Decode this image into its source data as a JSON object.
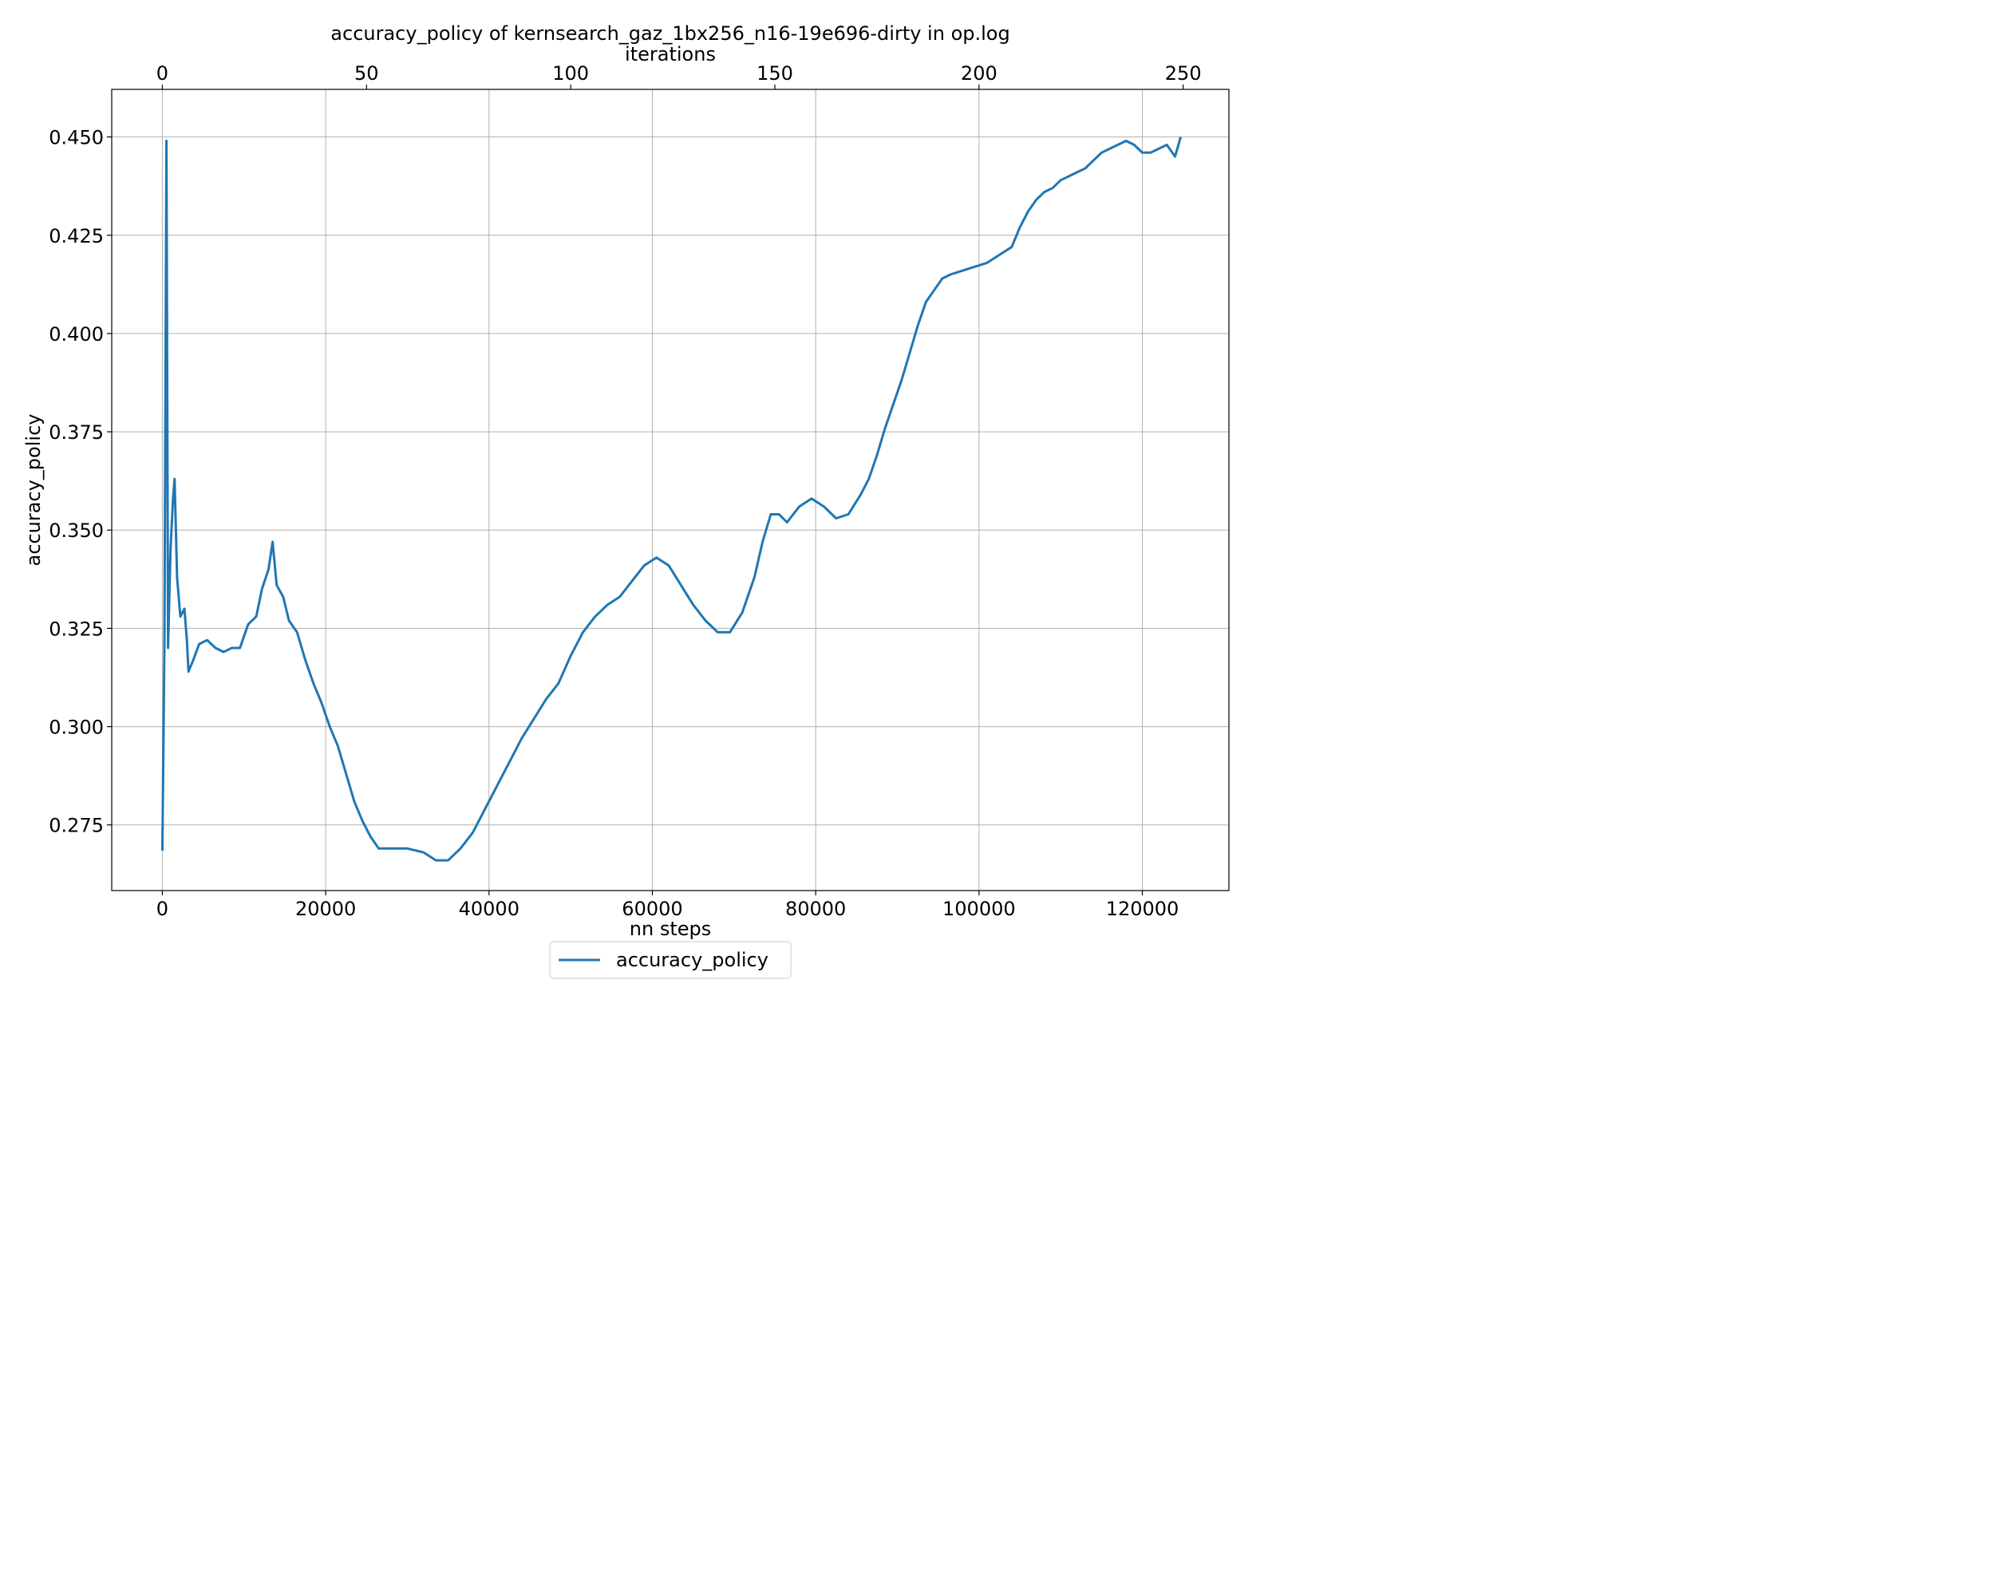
{
  "chart_data": {
    "type": "line",
    "title": "accuracy_policy of kernsearch_gaz_1bx256_n16-19e696-dirty in op.log",
    "xlabel": "nn steps",
    "x2label": "iterations",
    "ylabel": "accuracy_policy",
    "xlim": [
      -6200,
      130600
    ],
    "ylim": [
      0.2583,
      0.4621
    ],
    "x2lim": [
      -12.4,
      261.2
    ],
    "xticks": [
      "0",
      "20000",
      "40000",
      "60000",
      "80000",
      "100000",
      "120000"
    ],
    "x2ticks": [
      "0",
      "50",
      "100",
      "150",
      "200",
      "250"
    ],
    "yticks": [
      "0.275",
      "0.300",
      "0.325",
      "0.350",
      "0.375",
      "0.400",
      "0.425",
      "0.450"
    ],
    "grid": true,
    "legend": "below-center",
    "series": [
      {
        "name": "accuracy_policy",
        "color": "#1f77b4",
        "points": [
          [
            0,
            0.2685
          ],
          [
            250,
            0.32
          ],
          [
            500,
            0.449
          ],
          [
            700,
            0.32
          ],
          [
            1000,
            0.345
          ],
          [
            1300,
            0.358
          ],
          [
            1500,
            0.363
          ],
          [
            1800,
            0.338
          ],
          [
            2200,
            0.328
          ],
          [
            2700,
            0.33
          ],
          [
            3000,
            0.322
          ],
          [
            3200,
            0.314
          ],
          [
            3800,
            0.317
          ],
          [
            4500,
            0.321
          ],
          [
            5500,
            0.322
          ],
          [
            6500,
            0.32
          ],
          [
            7500,
            0.319
          ],
          [
            8500,
            0.32
          ],
          [
            9500,
            0.32
          ],
          [
            10500,
            0.326
          ],
          [
            11500,
            0.328
          ],
          [
            12200,
            0.335
          ],
          [
            13000,
            0.34
          ],
          [
            13500,
            0.347
          ],
          [
            14000,
            0.336
          ],
          [
            14800,
            0.333
          ],
          [
            15500,
            0.327
          ],
          [
            16500,
            0.324
          ],
          [
            17500,
            0.317
          ],
          [
            18500,
            0.311
          ],
          [
            19500,
            0.306
          ],
          [
            20500,
            0.3
          ],
          [
            21500,
            0.295
          ],
          [
            22500,
            0.288
          ],
          [
            23500,
            0.281
          ],
          [
            24500,
            0.276
          ],
          [
            25500,
            0.272
          ],
          [
            26500,
            0.269
          ],
          [
            28000,
            0.269
          ],
          [
            30000,
            0.269
          ],
          [
            32000,
            0.268
          ],
          [
            33500,
            0.266
          ],
          [
            35000,
            0.266
          ],
          [
            36500,
            0.269
          ],
          [
            38000,
            0.273
          ],
          [
            39500,
            0.279
          ],
          [
            41000,
            0.285
          ],
          [
            42500,
            0.291
          ],
          [
            44000,
            0.297
          ],
          [
            45500,
            0.302
          ],
          [
            47000,
            0.307
          ],
          [
            48500,
            0.311
          ],
          [
            50000,
            0.318
          ],
          [
            51500,
            0.324
          ],
          [
            53000,
            0.328
          ],
          [
            54500,
            0.331
          ],
          [
            56000,
            0.333
          ],
          [
            57500,
            0.337
          ],
          [
            59000,
            0.341
          ],
          [
            60500,
            0.343
          ],
          [
            62000,
            0.341
          ],
          [
            63500,
            0.336
          ],
          [
            65000,
            0.331
          ],
          [
            66500,
            0.327
          ],
          [
            68000,
            0.324
          ],
          [
            69500,
            0.324
          ],
          [
            71000,
            0.329
          ],
          [
            72500,
            0.338
          ],
          [
            73500,
            0.347
          ],
          [
            74500,
            0.354
          ],
          [
            75500,
            0.354
          ],
          [
            76500,
            0.352
          ],
          [
            78000,
            0.356
          ],
          [
            79500,
            0.358
          ],
          [
            81000,
            0.356
          ],
          [
            82500,
            0.353
          ],
          [
            84000,
            0.354
          ],
          [
            85500,
            0.359
          ],
          [
            86500,
            0.363
          ],
          [
            87500,
            0.369
          ],
          [
            88500,
            0.376
          ],
          [
            89500,
            0.382
          ],
          [
            90500,
            0.388
          ],
          [
            91500,
            0.395
          ],
          [
            92500,
            0.402
          ],
          [
            93500,
            0.408
          ],
          [
            94500,
            0.411
          ],
          [
            95500,
            0.414
          ],
          [
            96500,
            0.415
          ],
          [
            98000,
            0.416
          ],
          [
            99500,
            0.417
          ],
          [
            101000,
            0.418
          ],
          [
            102500,
            0.42
          ],
          [
            104000,
            0.422
          ],
          [
            105000,
            0.427
          ],
          [
            106000,
            0.431
          ],
          [
            107000,
            0.434
          ],
          [
            108000,
            0.436
          ],
          [
            109000,
            0.437
          ],
          [
            110000,
            0.439
          ],
          [
            111000,
            0.44
          ],
          [
            112000,
            0.441
          ],
          [
            113000,
            0.442
          ],
          [
            114000,
            0.444
          ],
          [
            115000,
            0.446
          ],
          [
            116000,
            0.447
          ],
          [
            117000,
            0.448
          ],
          [
            118000,
            0.449
          ],
          [
            119000,
            0.448
          ],
          [
            120000,
            0.446
          ],
          [
            121000,
            0.446
          ],
          [
            122000,
            0.447
          ],
          [
            123000,
            0.448
          ],
          [
            124000,
            0.445
          ],
          [
            124700,
            0.45
          ]
        ]
      }
    ]
  }
}
